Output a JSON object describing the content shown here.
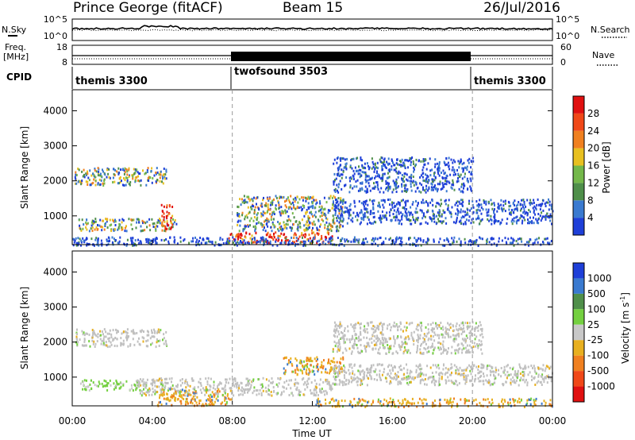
{
  "header": {
    "station": "Prince George (fitACF)",
    "beam": "Beam 15",
    "date": "26/Jul/2016"
  },
  "summary_panels": {
    "nsky_label": "N.Sky",
    "nsearch_label": "N.Search",
    "count_ticks": [
      "10^5",
      "10^0"
    ],
    "freq_label_line1": "Freq.",
    "freq_label_line2": "[MHz]",
    "freq_ticks": [
      "18",
      "8"
    ],
    "nave_label": "Nave",
    "nave_ticks": [
      "60",
      "0"
    ],
    "cpid_label": "CPID"
  },
  "cpid_segments": [
    {
      "name": "themis 3300",
      "start": 0,
      "end": 8
    },
    {
      "name": "twofsound 3503",
      "start": 8,
      "end": 20
    },
    {
      "name": "themis 3300",
      "start": 20,
      "end": 24
    }
  ],
  "colors": {
    "power": [
      "#1e3fd8",
      "#3a7ad0",
      "#4f8f4a",
      "#74b84a",
      "#e8c020",
      "#f08020",
      "#f04818",
      "#e01010"
    ],
    "velocity": [
      "#1e3fd8",
      "#3a7ad0",
      "#4f8f4a",
      "#74d040",
      "#c8c8c8",
      "#e8b020",
      "#f08020",
      "#f04818",
      "#e01010"
    ],
    "ground_scatter": "#c0c0c0"
  },
  "chart_data": [
    {
      "type": "heatmap",
      "name": "power",
      "xlabel": "Time UT",
      "ylabel": "Slant Range [km]",
      "xlim": [
        0,
        24
      ],
      "ylim": [
        180,
        4600
      ],
      "x_ticks": [
        "00:00",
        "04:00",
        "08:00",
        "12:00",
        "16:00",
        "20:00",
        "00:00"
      ],
      "y_ticks": [
        1000,
        2000,
        3000,
        4000
      ],
      "colorbar_label": "Power [dB]",
      "colorbar_ticks": [
        "4",
        "8",
        "12",
        "16",
        "20",
        "24",
        "28"
      ],
      "colorbar_range": [
        0,
        32
      ],
      "regions": [
        {
          "t": [
            0.1,
            4.7
          ],
          "r": [
            1900,
            2400
          ],
          "level": "mixed"
        },
        {
          "t": [
            0.3,
            5.2
          ],
          "r": [
            600,
            950
          ],
          "level": "mixed"
        },
        {
          "t": [
            4.4,
            5.0
          ],
          "r": [
            650,
            1350
          ],
          "level": "strong"
        },
        {
          "t": [
            7.8,
            13.0
          ],
          "r": [
            250,
            560
          ],
          "level": "strong"
        },
        {
          "t": [
            8.2,
            13.5
          ],
          "r": [
            600,
            1600
          ],
          "level": "mixed"
        },
        {
          "t": [
            13.0,
            20.0
          ],
          "r": [
            1700,
            2700
          ],
          "level": "weak"
        },
        {
          "t": [
            13.0,
            24.0
          ],
          "r": [
            800,
            1500
          ],
          "level": "weak"
        },
        {
          "t": [
            0.0,
            24.0
          ],
          "r": [
            180,
            420
          ],
          "level": "weak"
        }
      ]
    },
    {
      "type": "heatmap",
      "name": "velocity",
      "xlabel": "Time UT",
      "ylabel": "Slant Range [km]",
      "xlim": [
        0,
        24
      ],
      "ylim": [
        180,
        4600
      ],
      "x_ticks": [
        "00:00",
        "04:00",
        "08:00",
        "12:00",
        "16:00",
        "20:00",
        "00:00"
      ],
      "y_ticks": [
        1000,
        2000,
        3000,
        4000
      ],
      "colorbar_label": "Velocity [m s^-1]",
      "colorbar_label_main": "Velocity",
      "colorbar_label_unit": "[m s",
      "colorbar_label_sup": "-1",
      "colorbar_label_close": "]",
      "colorbar_ticks": [
        "1000",
        "500",
        "100",
        "25",
        "-25",
        "-100",
        "-500",
        "-1000"
      ],
      "regions": [
        {
          "t": [
            0.1,
            4.7
          ],
          "r": [
            1900,
            2400
          ],
          "level": "ground"
        },
        {
          "t": [
            0.3,
            3.8
          ],
          "r": [
            650,
            950
          ],
          "level": "green"
        },
        {
          "t": [
            3.2,
            13.0
          ],
          "r": [
            500,
            1000
          ],
          "level": "ground"
        },
        {
          "t": [
            4.2,
            8.0
          ],
          "r": [
            200,
            700
          ],
          "level": "orange"
        },
        {
          "t": [
            10.5,
            13.5
          ],
          "r": [
            1100,
            1600
          ],
          "level": "orange"
        },
        {
          "t": [
            13.0,
            20.5
          ],
          "r": [
            1700,
            2600
          ],
          "level": "ground"
        },
        {
          "t": [
            13.0,
            24.0
          ],
          "r": [
            800,
            1400
          ],
          "level": "ground"
        },
        {
          "t": [
            12.0,
            24.0
          ],
          "r": [
            180,
            420
          ],
          "level": "orange"
        }
      ]
    }
  ]
}
